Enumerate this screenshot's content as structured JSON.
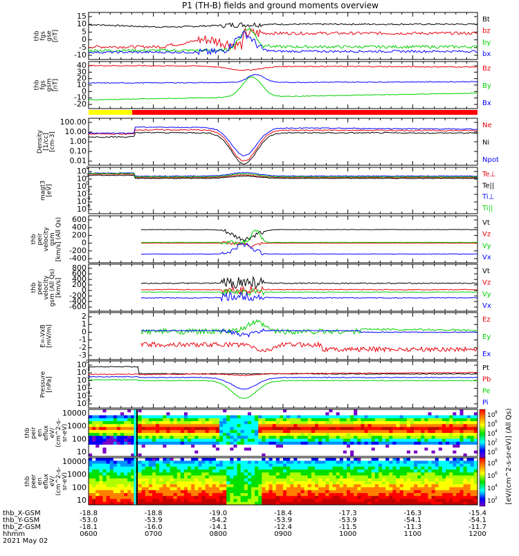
{
  "title": "P1 (TH-B) fields and ground moments overview",
  "colors": {
    "black": "#000000",
    "red": "#e8000b",
    "green": "#00d000",
    "blue": "#0000ff",
    "yellow": "#ffff00",
    "cyan": "#00ffff"
  },
  "chart_data": [
    {
      "type": "line",
      "panel": "fgs_gse",
      "ylabel_lines": [
        "thb",
        "fgs",
        "gse",
        "[nT]"
      ],
      "ylim": [
        -10,
        16
      ],
      "y_ticks": [
        "15",
        "10",
        "5",
        "0",
        "-5",
        "-10"
      ],
      "legend": [
        {
          "label": "Bt",
          "color": "#000000"
        },
        {
          "label": "bz",
          "color": "#e8000b"
        },
        {
          "label": "by",
          "color": "#00d000"
        },
        {
          "label": "bx",
          "color": "#0000ff"
        }
      ]
    },
    {
      "type": "line",
      "panel": "fgs_gsm",
      "ylabel_lines": [
        "thb",
        "fgs",
        "gsm",
        "[nT]"
      ],
      "ylim": [
        -25,
        45
      ],
      "y_ticks": [
        "40",
        "30",
        "20",
        "10",
        "0",
        "-10",
        "-20"
      ],
      "legend": [
        {
          "label": "Bz",
          "color": "#e8000b"
        },
        {
          "label": "By",
          "color": "#00d000"
        },
        {
          "label": "Bx",
          "color": "#0000ff"
        }
      ]
    },
    {
      "type": "line",
      "panel": "density",
      "scale": "log",
      "ylabel_lines": [
        "Density",
        "[1/cc]",
        "[cm-3]"
      ],
      "y_ticks": [
        "100.00",
        "10.00",
        "1.00",
        "0.10",
        "0.01"
      ],
      "legend": [
        {
          "label": "Ne",
          "color": "#e8000b"
        },
        {
          "label": "Ni",
          "color": "#000000"
        },
        {
          "label": "Npot",
          "color": "#0000ff"
        }
      ]
    },
    {
      "type": "line",
      "panel": "temperature",
      "scale": "log",
      "ylabel_lines": [
        "magt3",
        "[eV]"
      ],
      "y_ticks": [
        "10",
        "10",
        "10",
        "10",
        "10",
        "10"
      ],
      "y_tick_exponents": [
        "4",
        "2",
        "0",
        "-2",
        "-4",
        "-6"
      ],
      "legend": [
        {
          "label": "Te⊥",
          "color": "#e8000b"
        },
        {
          "label": "Te||",
          "color": "#000000"
        },
        {
          "label": "Ti⊥",
          "color": "#0000ff"
        },
        {
          "label": "Ti||",
          "color": "#00d000"
        }
      ]
    },
    {
      "type": "line",
      "panel": "peir_velocity",
      "ylabel_lines": [
        "thb",
        "peir",
        "velocity",
        "gsm",
        "[km/s] (All Qs)"
      ],
      "ylim": [
        -400,
        600
      ],
      "y_ticks": [
        "600",
        "400",
        "200",
        "0",
        "-200",
        "-400"
      ],
      "legend": [
        {
          "label": "Vt",
          "color": "#000000"
        },
        {
          "label": "Vz",
          "color": "#e8000b"
        },
        {
          "label": "Vy",
          "color": "#00d000"
        },
        {
          "label": "Vx",
          "color": "#0000ff"
        }
      ]
    },
    {
      "type": "line",
      "panel": "peer_velocity",
      "ylabel_lines": [
        "thb",
        "peer",
        "velocity",
        "gsm (All Qs)",
        "[km/s]"
      ],
      "ylim": [
        -700,
        900
      ],
      "y_ticks": [
        "800",
        "600",
        "400",
        "200",
        "0",
        "-200",
        "-400",
        "-600"
      ],
      "legend": [
        {
          "label": "Vt",
          "color": "#000000"
        },
        {
          "label": "Vz",
          "color": "#e8000b"
        },
        {
          "label": "Vy",
          "color": "#00d000"
        },
        {
          "label": "Vx",
          "color": "#0000ff"
        }
      ]
    },
    {
      "type": "line",
      "panel": "efield",
      "ylabel_lines": [
        "E=-VxB",
        "[mV/m]"
      ],
      "ylim": [
        -3.5,
        2.5
      ],
      "y_ticks": [
        "2",
        "1",
        "0",
        "-1",
        "-2",
        "-3"
      ],
      "legend": [
        {
          "label": "Ez",
          "color": "#e8000b"
        },
        {
          "label": "Ey",
          "color": "#00d000"
        },
        {
          "label": "Ex",
          "color": "#0000ff"
        }
      ]
    },
    {
      "type": "line",
      "panel": "pressure",
      "scale": "log",
      "ylabel_lines": [
        "Pressure",
        "[nPa]"
      ],
      "y_ticks": [
        "10",
        "10",
        "10",
        "10",
        "10",
        "10"
      ],
      "y_tick_exponents": [
        "0",
        "-1",
        "-2",
        "-3",
        "-4",
        "-5"
      ],
      "legend": [
        {
          "label": "Pt",
          "color": "#000000"
        },
        {
          "label": "Pb",
          "color": "#e8000b"
        },
        {
          "label": "Pe",
          "color": "#00d000"
        },
        {
          "label": "Pi",
          "color": "#0000ff"
        }
      ]
    },
    {
      "type": "heatmap",
      "panel": "peir_en_eflux",
      "scale": "log",
      "ylabel_lines": [
        "thb",
        "peir",
        "en",
        "eflux",
        "eV/",
        "(cm^2-s-",
        "sr-eV)"
      ],
      "y_ticks": [
        "10000",
        "1000",
        "100",
        "10"
      ]
    },
    {
      "type": "heatmap",
      "panel": "peer_en_eflux",
      "scale": "log",
      "ylabel_lines": [
        "thb",
        "peer",
        "en",
        "eflux",
        "eV/",
        "(cm^2-s-",
        "sr-eV)"
      ],
      "y_ticks": [
        "10000",
        "1000",
        "100",
        "10"
      ]
    }
  ],
  "colorbar": {
    "upper_ticks": [
      "10",
      "10",
      "10",
      "10",
      "10"
    ],
    "upper_exponents": [
      "8",
      "6",
      "4",
      "2",
      "0"
    ],
    "lower_ticks": [
      "10",
      "10",
      "10",
      "10"
    ],
    "lower_exponents": [
      "8",
      "6",
      "4",
      "2"
    ],
    "label": "[eV/(cm^2-s-sr-eV)] (All Qs)"
  },
  "x_axis": {
    "row_labels": [
      "thb_X-GSM",
      "thb_Y-GSM",
      "thb_Z-GSM",
      "hhmm",
      "2021 May 02"
    ],
    "columns": [
      {
        "x": "-18.8",
        "y": "-53.0",
        "z": "-18.1",
        "time": "0600"
      },
      {
        "x": "-18.8",
        "y": "-53.9",
        "z": "-16.0",
        "time": "0700"
      },
      {
        "x": "-19.0",
        "y": "-54.2",
        "z": "-14.1",
        "time": "0800"
      },
      {
        "x": "-18.4",
        "y": "-53.9",
        "z": "-12.4",
        "time": "0900"
      },
      {
        "x": "-17.3",
        "y": "-53.9",
        "z": "-11.5",
        "time": "1000"
      },
      {
        "x": "-16.3",
        "y": "-54.1",
        "z": "-11.3",
        "time": "1100"
      },
      {
        "x": "-15.4",
        "y": "-54.1",
        "z": "-11.7",
        "time": "1200"
      }
    ]
  }
}
